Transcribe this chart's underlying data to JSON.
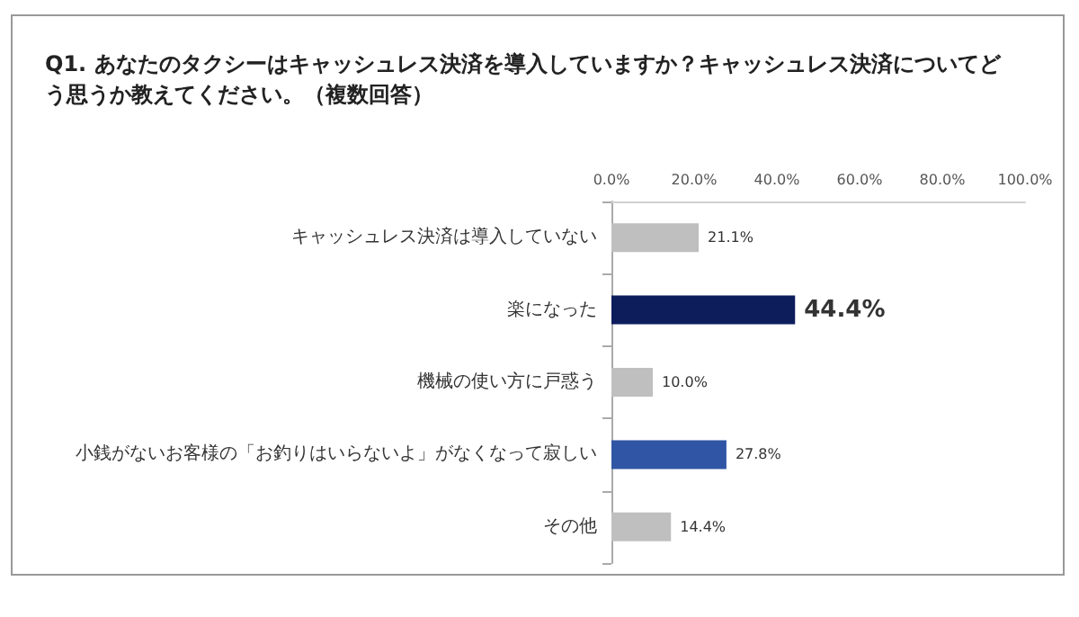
{
  "chart_data": {
    "type": "bar",
    "orientation": "horizontal",
    "title": "Q1. あなたのタクシーはキャッシュレス決済を導入していますか？キャッシュレス決済についてどう思うか教えてください。（複数回答）",
    "categories": [
      "キャッシュレス決済は導入していない",
      "楽になった",
      "機械の使い方に戸惑う",
      "小銭がないお客様の「お釣りはいらないよ」がなくなって寂しい",
      "その他"
    ],
    "values": [
      21.1,
      44.4,
      10.0,
      27.8,
      14.4
    ],
    "colors": [
      "#bfbfbf",
      "#0d1d5c",
      "#bfbfbf",
      "#2f55a4",
      "#bfbfbf"
    ],
    "value_labels": [
      "21.1%",
      "44.4%",
      "10.0%",
      "27.8%",
      "14.4%"
    ],
    "xlim": [
      0,
      100
    ],
    "xticks": [
      {
        "value": 0,
        "label": "0.0%"
      },
      {
        "value": 20,
        "label": "20.0%"
      },
      {
        "value": 40,
        "label": "40.0%"
      },
      {
        "value": 60,
        "label": "60.0%"
      },
      {
        "value": 80,
        "label": "80.0%"
      },
      {
        "value": 100,
        "label": "100.0%"
      }
    ],
    "grid": false
  }
}
